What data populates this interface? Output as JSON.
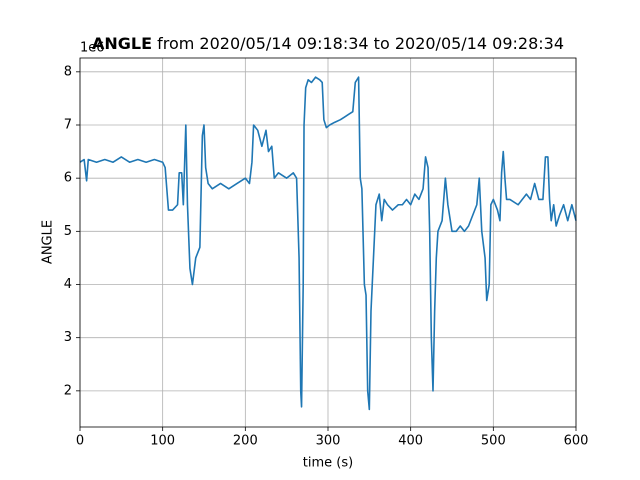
{
  "chart_data": {
    "type": "line",
    "title_variable": "ANGLE",
    "title_rest": "from 2020/05/14 09:18:34 to 2020/05/14 09:28:34",
    "offset_text": "1e6",
    "xlabel": "time (s)",
    "ylabel": "ANGLE",
    "xlim": [
      0,
      600
    ],
    "ylim": [
      1.32,
      8.26
    ],
    "xticks": [
      0,
      100,
      200,
      300,
      400,
      500,
      600
    ],
    "yticks": [
      2,
      3,
      4,
      5,
      6,
      7,
      8
    ],
    "grid": true,
    "series": [
      {
        "name": "ANGLE",
        "color": "#1f77b4",
        "x": [
          0,
          5,
          8,
          10,
          20,
          30,
          40,
          50,
          60,
          70,
          80,
          90,
          100,
          103,
          107,
          112,
          118,
          120,
          123,
          125,
          128,
          130,
          133,
          136,
          140,
          145,
          148,
          150,
          152,
          155,
          160,
          170,
          180,
          190,
          200,
          205,
          208,
          210,
          215,
          220,
          225,
          228,
          232,
          235,
          240,
          250,
          258,
          262,
          265,
          267,
          268,
          270,
          271,
          273,
          276,
          280,
          285,
          290,
          293,
          295,
          298,
          302,
          308,
          315,
          320,
          325,
          330,
          333,
          337,
          339,
          341,
          344,
          346,
          348,
          350,
          352,
          355,
          358,
          362,
          365,
          368,
          372,
          378,
          385,
          390,
          395,
          400,
          405,
          410,
          415,
          418,
          421,
          423,
          425,
          427,
          429,
          431,
          433,
          438,
          442,
          445,
          450,
          455,
          460,
          465,
          470,
          475,
          480,
          483,
          486,
          490,
          492,
          495,
          497,
          500,
          505,
          508,
          510,
          512,
          514,
          516,
          520,
          530,
          540,
          545,
          550,
          555,
          560,
          563,
          566,
          568,
          570,
          573,
          576,
          580,
          585,
          590,
          595,
          600
        ],
        "values": [
          6.3,
          6.35,
          5.95,
          6.35,
          6.3,
          6.35,
          6.3,
          6.4,
          6.3,
          6.35,
          6.3,
          6.35,
          6.3,
          6.2,
          5.4,
          5.4,
          5.5,
          6.1,
          6.1,
          5.5,
          7.0,
          5.5,
          4.3,
          4.0,
          4.5,
          4.7,
          6.8,
          7.0,
          6.2,
          5.9,
          5.8,
          5.9,
          5.8,
          5.9,
          6.0,
          5.9,
          6.3,
          7.0,
          6.9,
          6.6,
          6.9,
          6.5,
          6.6,
          6.0,
          6.1,
          6.0,
          6.1,
          6.0,
          4.5,
          2.0,
          1.7,
          4.0,
          7.0,
          7.7,
          7.85,
          7.8,
          7.9,
          7.85,
          7.8,
          7.1,
          6.95,
          7.0,
          7.05,
          7.1,
          7.15,
          7.2,
          7.25,
          7.8,
          7.9,
          6.0,
          5.8,
          4.0,
          3.8,
          2.0,
          1.65,
          3.5,
          4.5,
          5.5,
          5.7,
          5.2,
          5.6,
          5.5,
          5.4,
          5.5,
          5.5,
          5.6,
          5.5,
          5.7,
          5.6,
          5.8,
          6.4,
          6.2,
          5.0,
          3.0,
          2.0,
          3.5,
          4.5,
          5.0,
          5.2,
          6.0,
          5.5,
          5.0,
          5.0,
          5.1,
          5.0,
          5.1,
          5.3,
          5.5,
          6.0,
          5.0,
          4.5,
          3.7,
          4.0,
          5.5,
          5.6,
          5.4,
          5.2,
          6.1,
          6.5,
          6.0,
          5.6,
          5.6,
          5.5,
          5.7,
          5.6,
          5.9,
          5.6,
          5.6,
          6.4,
          6.4,
          5.6,
          5.2,
          5.5,
          5.1,
          5.3,
          5.5,
          5.2,
          5.5,
          5.2
        ]
      }
    ]
  }
}
